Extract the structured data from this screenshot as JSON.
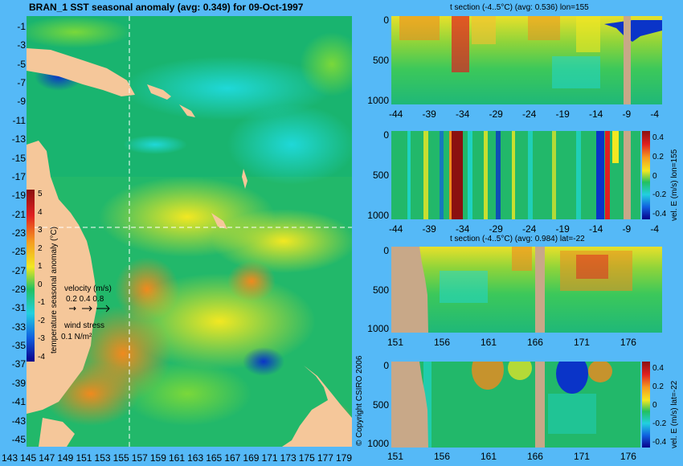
{
  "main_map": {
    "title": "BRAN_1 SST seasonal anomaly (avg: 0.349) for 09-Oct-1997",
    "lat_ticks": [
      "-1",
      "-3",
      "-5",
      "-7",
      "-9",
      "-11",
      "-13",
      "-15",
      "-17",
      "-19",
      "-21",
      "-23",
      "-25",
      "-27",
      "-29",
      "-31",
      "-33",
      "-35",
      "-37",
      "-39",
      "-41",
      "-43",
      "-45"
    ],
    "lon_ticks": [
      "143",
      "145",
      "147",
      "149",
      "151",
      "153",
      "155",
      "157",
      "159",
      "161",
      "163",
      "165",
      "167",
      "169",
      "171",
      "173",
      "175",
      "177",
      "179"
    ],
    "colorbar": {
      "ticks": [
        "5",
        "4",
        "3",
        "2",
        "1",
        "0",
        "-1",
        "-2",
        "-3",
        "-4"
      ],
      "label": "temperature seasonal anomaly (°C)"
    },
    "velocity_legend": {
      "title": "velocity (m/s)",
      "values": "0.2 0.4 0.8"
    },
    "wind_legend": {
      "title": "wind stress",
      "value": "0.1 N/m²"
    },
    "crosshair": {
      "lon": 155,
      "lat": -22
    },
    "copyright": "© Copyright CSIRO 2006"
  },
  "panels": [
    {
      "id": "t-section-lon",
      "title": "t section (-4..5°C) (avg: 0.536) lon=155",
      "y_ticks": [
        "0",
        "500",
        "1000"
      ],
      "x_ticks": [
        "-44",
        "-39",
        "-34",
        "-29",
        "-24",
        "-19",
        "-14",
        "-9",
        "-4"
      ]
    },
    {
      "id": "vel-section-lon",
      "title": "",
      "y_ticks": [
        "0",
        "500",
        "1000"
      ],
      "x_ticks": [
        "-44",
        "-39",
        "-34",
        "-29",
        "-24",
        "-19",
        "-14",
        "-9",
        "-4"
      ],
      "colorbar_label": "vel. E (m/s) lon=155",
      "colorbar_ticks": [
        "0.4",
        "0.2",
        "0",
        "-0.2",
        "-0.4"
      ]
    },
    {
      "id": "t-section-lat",
      "title": "t section (-4..5°C) (avg: 0.984) lat=-22",
      "y_ticks": [
        "0",
        "500",
        "1000"
      ],
      "x_ticks": [
        "151",
        "156",
        "161",
        "166",
        "171",
        "176"
      ]
    },
    {
      "id": "vel-section-lat",
      "title": "",
      "y_ticks": [
        "0",
        "500",
        "1000"
      ],
      "x_ticks": [
        "151",
        "156",
        "161",
        "166",
        "171",
        "176"
      ],
      "colorbar_label": "vel. E (m/s) lat=-22",
      "colorbar_ticks": [
        "0.4",
        "0.2",
        "0",
        "-0.2",
        "-0.4"
      ]
    }
  ]
}
